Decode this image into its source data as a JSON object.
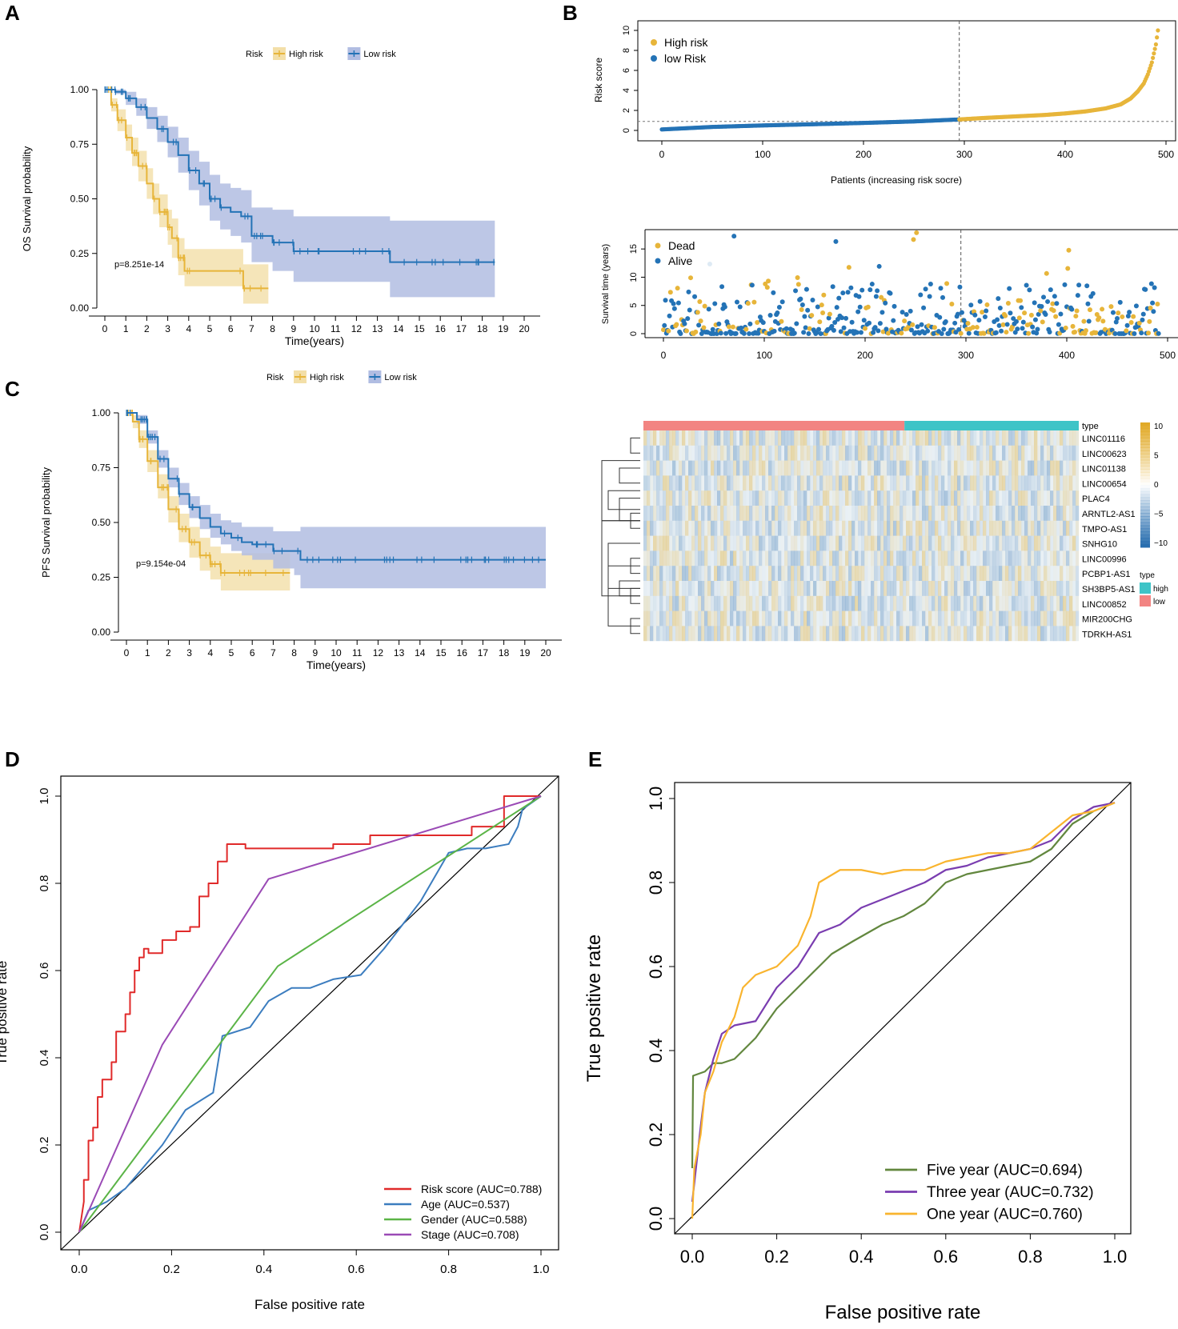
{
  "colors": {
    "high": "#E7B53A",
    "low": "#2473B6",
    "high_ci": "#F3DFA8",
    "low_ci": "#B1BDE2",
    "red": "#E02A2A",
    "blue": "#3C7DBF",
    "green": "#5BB447",
    "purple": "#9A4AB5",
    "olive": "#62873E",
    "violet": "#7A3DB0",
    "orange": "#F9B42E",
    "heat_type_low": "#F28482",
    "heat_type_high": "#3EC4C7"
  },
  "panel_labels": {
    "a": "A",
    "b": "B",
    "c": "C",
    "d": "D",
    "e": "E"
  },
  "chart_data": [
    {
      "id": "A",
      "type": "line",
      "title": "",
      "legend_title": "Risk",
      "legend": [
        "High risk",
        "Low risk"
      ],
      "xlabel": "Time(years)",
      "ylabel": "OS Survival probability",
      "xlim": [
        0,
        20
      ],
      "ylim": [
        0,
        1
      ],
      "xticks": [
        0,
        1,
        2,
        3,
        4,
        5,
        6,
        7,
        8,
        9,
        10,
        11,
        12,
        13,
        14,
        15,
        16,
        17,
        18,
        19,
        20
      ],
      "yticks": [
        "0.00",
        "0.25",
        "0.50",
        "0.75",
        "1.00"
      ],
      "annotation": "p=8.251e-14",
      "series": [
        {
          "name": "High risk",
          "x": [
            0,
            0.3,
            0.6,
            1,
            1.3,
            1.6,
            2,
            2.3,
            2.6,
            3,
            3.2,
            3.5,
            3.8,
            4,
            4.5,
            5,
            6,
            6.6,
            7,
            7.8
          ],
          "y": [
            1,
            0.93,
            0.86,
            0.78,
            0.71,
            0.65,
            0.57,
            0.5,
            0.44,
            0.37,
            0.32,
            0.23,
            0.17,
            0.17,
            0.17,
            0.17,
            0.17,
            0.09,
            0.09,
            0.09
          ],
          "lower": [
            1,
            0.9,
            0.81,
            0.72,
            0.65,
            0.58,
            0.5,
            0.43,
            0.37,
            0.29,
            0.23,
            0.15,
            0.1,
            0.1,
            0.1,
            0.1,
            0.1,
            0.02,
            0.02,
            0.02
          ],
          "upper": [
            1,
            0.96,
            0.91,
            0.84,
            0.78,
            0.72,
            0.64,
            0.57,
            0.52,
            0.45,
            0.41,
            0.32,
            0.27,
            0.27,
            0.27,
            0.27,
            0.27,
            0.2,
            0.2,
            0.2
          ]
        },
        {
          "name": "Low risk",
          "x": [
            0,
            0.5,
            1,
            1.5,
            2,
            2.5,
            3,
            3.5,
            4,
            4.5,
            5,
            5.5,
            6,
            6.5,
            7,
            7.5,
            8,
            9,
            11,
            13,
            13.6,
            15,
            18.6
          ],
          "y": [
            1,
            0.99,
            0.96,
            0.92,
            0.87,
            0.82,
            0.76,
            0.7,
            0.63,
            0.57,
            0.5,
            0.46,
            0.44,
            0.42,
            0.33,
            0.33,
            0.3,
            0.26,
            0.26,
            0.26,
            0.21,
            0.21,
            0.21
          ],
          "lower": [
            1,
            0.98,
            0.93,
            0.88,
            0.82,
            0.76,
            0.69,
            0.62,
            0.54,
            0.47,
            0.4,
            0.36,
            0.33,
            0.3,
            0.21,
            0.21,
            0.17,
            0.12,
            0.12,
            0.12,
            0.05,
            0.05,
            0.05
          ],
          "upper": [
            1,
            1,
            0.99,
            0.96,
            0.92,
            0.88,
            0.83,
            0.78,
            0.72,
            0.67,
            0.61,
            0.57,
            0.55,
            0.54,
            0.46,
            0.46,
            0.45,
            0.42,
            0.42,
            0.42,
            0.4,
            0.4,
            0.4
          ]
        }
      ]
    },
    {
      "id": "B1",
      "type": "scatter",
      "legend": [
        "High risk",
        "low Risk"
      ],
      "xlabel": "Patients (increasing risk socre)",
      "ylabel": "Risk score",
      "xlim": [
        0,
        500
      ],
      "ylim": [
        0,
        10
      ],
      "xticks": [
        0,
        100,
        200,
        300,
        400,
        500
      ],
      "yticks": [
        0,
        2,
        4,
        6,
        8,
        10
      ],
      "cutoff_patient": 295,
      "cutoff_score": 0.9,
      "n_patients": 492,
      "curve": {
        "rank": [
          0,
          50,
          100,
          150,
          200,
          250,
          295,
          320,
          350,
          380,
          400,
          420,
          440,
          455,
          465,
          472,
          478,
          482,
          486,
          490,
          492
        ],
        "score": [
          0.1,
          0.35,
          0.5,
          0.62,
          0.75,
          0.9,
          1.1,
          1.25,
          1.4,
          1.55,
          1.7,
          1.9,
          2.2,
          2.6,
          3.2,
          3.9,
          4.7,
          5.6,
          6.8,
          8.6,
          10.0
        ]
      }
    },
    {
      "id": "B2",
      "type": "scatter",
      "legend": [
        "Dead",
        "Alive"
      ],
      "ylabel": "Survival time (years)",
      "xlim": [
        0,
        500
      ],
      "ylim": [
        0,
        18
      ],
      "xticks": [
        0,
        100,
        200,
        300,
        400,
        500
      ],
      "yticks": [
        0,
        5,
        10,
        15
      ],
      "cutoff_patient": 295
    },
    {
      "id": "B3",
      "type": "heatmap",
      "legend_type_title": "type",
      "legend_type": [
        "high",
        "low"
      ],
      "row_type_label": "type",
      "scale_ticks": [
        "10",
        "5",
        "0",
        "−5",
        "−10"
      ],
      "rows": [
        "LINC01116",
        "LINC00623",
        "LINC01138",
        "LINC00654",
        "PLAC4",
        "ARNTL2-AS1",
        "TMPO-AS1",
        "SNHG10",
        "LINC00996",
        "PCBP1-AS1",
        "SH3BP5-AS1",
        "LINC00852",
        "MIR200CHG",
        "TDRKH-AS1"
      ]
    },
    {
      "id": "C",
      "type": "line",
      "legend_title": "Risk",
      "legend": [
        "High risk",
        "Low risk"
      ],
      "xlabel": "Time(years)",
      "ylabel": "PFS Survival probability",
      "xlim": [
        0,
        20
      ],
      "ylim": [
        0,
        1
      ],
      "xticks": [
        0,
        1,
        2,
        3,
        4,
        5,
        6,
        7,
        8,
        9,
        10,
        11,
        12,
        13,
        14,
        15,
        16,
        17,
        18,
        19,
        20
      ],
      "yticks": [
        "0.00",
        "0.25",
        "0.50",
        "0.75",
        "1.00"
      ],
      "annotation": "p=9.154e-04",
      "series": [
        {
          "name": "High risk",
          "x": [
            0,
            0.3,
            0.6,
            1,
            1.5,
            2,
            2.5,
            3,
            3.5,
            4,
            4.5,
            5,
            6,
            7,
            7.8
          ],
          "y": [
            1,
            0.96,
            0.88,
            0.78,
            0.66,
            0.56,
            0.47,
            0.41,
            0.35,
            0.31,
            0.27,
            0.27,
            0.27,
            0.27,
            0.27
          ],
          "lower": [
            1,
            0.93,
            0.84,
            0.73,
            0.61,
            0.5,
            0.41,
            0.34,
            0.28,
            0.24,
            0.19,
            0.19,
            0.19,
            0.19,
            0.19
          ],
          "upper": [
            1,
            0.99,
            0.92,
            0.83,
            0.72,
            0.62,
            0.54,
            0.48,
            0.43,
            0.39,
            0.36,
            0.36,
            0.36,
            0.36,
            0.36
          ]
        },
        {
          "name": "Low risk",
          "x": [
            0,
            0.5,
            1,
            1.5,
            2,
            2.5,
            3,
            3.5,
            4,
            4.5,
            5,
            5.5,
            6,
            7,
            8,
            8.3,
            10,
            15,
            20
          ],
          "y": [
            1,
            0.97,
            0.89,
            0.79,
            0.7,
            0.63,
            0.57,
            0.52,
            0.48,
            0.45,
            0.43,
            0.41,
            0.4,
            0.37,
            0.37,
            0.33,
            0.33,
            0.33,
            0.33
          ],
          "lower": [
            1,
            0.95,
            0.86,
            0.75,
            0.66,
            0.58,
            0.52,
            0.47,
            0.43,
            0.4,
            0.37,
            0.35,
            0.33,
            0.29,
            0.26,
            0.2,
            0.2,
            0.2,
            0.2
          ],
          "upper": [
            1,
            0.99,
            0.92,
            0.83,
            0.75,
            0.68,
            0.62,
            0.58,
            0.54,
            0.51,
            0.5,
            0.48,
            0.48,
            0.46,
            0.46,
            0.48,
            0.48,
            0.48,
            0.48
          ]
        }
      ]
    },
    {
      "id": "D",
      "type": "line",
      "xlabel": "False positive rate",
      "ylabel": "True positive rate",
      "xlim": [
        0,
        1
      ],
      "ylim": [
        0,
        1
      ],
      "xticks": [
        "0.0",
        "0.2",
        "0.4",
        "0.6",
        "0.8",
        "1.0"
      ],
      "yticks": [
        "0.0",
        "0.2",
        "0.4",
        "0.6",
        "0.8",
        "1.0"
      ],
      "series": [
        {
          "name": "Risk score (AUC=0.788)",
          "color_key": "red",
          "x": [
            0,
            0.01,
            0.01,
            0.02,
            0.02,
            0.03,
            0.03,
            0.04,
            0.04,
            0.05,
            0.05,
            0.07,
            0.07,
            0.08,
            0.08,
            0.1,
            0.1,
            0.11,
            0.11,
            0.12,
            0.12,
            0.13,
            0.13,
            0.14,
            0.14,
            0.15,
            0.15,
            0.18,
            0.18,
            0.21,
            0.21,
            0.24,
            0.24,
            0.26,
            0.26,
            0.28,
            0.28,
            0.3,
            0.3,
            0.32,
            0.32,
            0.36,
            0.36,
            0.55,
            0.55,
            0.63,
            0.63,
            0.85,
            0.85,
            0.92,
            0.92,
            1
          ],
          "y": [
            0,
            0.07,
            0.12,
            0.12,
            0.21,
            0.21,
            0.24,
            0.24,
            0.31,
            0.31,
            0.35,
            0.35,
            0.39,
            0.39,
            0.46,
            0.46,
            0.5,
            0.5,
            0.55,
            0.55,
            0.6,
            0.6,
            0.63,
            0.63,
            0.65,
            0.65,
            0.64,
            0.64,
            0.67,
            0.67,
            0.69,
            0.69,
            0.7,
            0.7,
            0.77,
            0.77,
            0.8,
            0.8,
            0.85,
            0.85,
            0.89,
            0.89,
            0.88,
            0.88,
            0.89,
            0.89,
            0.91,
            0.91,
            0.93,
            0.93,
            1,
            1
          ]
        },
        {
          "name": "Age (AUC=0.537)",
          "color_key": "blue",
          "x": [
            0,
            0.02,
            0.04,
            0.06,
            0.1,
            0.18,
            0.23,
            0.29,
            0.31,
            0.37,
            0.41,
            0.46,
            0.5,
            0.55,
            0.61,
            0.66,
            0.74,
            0.8,
            0.84,
            0.88,
            0.93,
            0.95,
            0.96,
            1
          ],
          "y": [
            0,
            0.05,
            0.06,
            0.07,
            0.1,
            0.2,
            0.28,
            0.32,
            0.45,
            0.47,
            0.53,
            0.56,
            0.56,
            0.58,
            0.59,
            0.65,
            0.76,
            0.87,
            0.88,
            0.88,
            0.89,
            0.93,
            0.97,
            1
          ]
        },
        {
          "name": "Gender (AUC=0.588)",
          "color_key": "green",
          "x": [
            0,
            0.43,
            1
          ],
          "y": [
            0,
            0.61,
            1
          ]
        },
        {
          "name": "Stage (AUC=0.708)",
          "color_key": "purple",
          "x": [
            0,
            0.18,
            0.41,
            1
          ],
          "y": [
            0,
            0.43,
            0.81,
            1
          ]
        }
      ]
    },
    {
      "id": "E",
      "type": "line",
      "xlabel": "False positive rate",
      "ylabel": "True positive rate",
      "xlim": [
        0,
        1
      ],
      "ylim": [
        0,
        1
      ],
      "xticks": [
        "0.0",
        "0.2",
        "0.4",
        "0.6",
        "0.8",
        "1.0"
      ],
      "yticks": [
        "0.0",
        "0.2",
        "0.4",
        "0.6",
        "0.8",
        "1.0"
      ],
      "series": [
        {
          "name": "Five year (AUC=0.694)",
          "color_key": "olive",
          "x": [
            0,
            0.002,
            0.03,
            0.04,
            0.05,
            0.07,
            0.1,
            0.15,
            0.2,
            0.25,
            0.3,
            0.33,
            0.38,
            0.45,
            0.5,
            0.55,
            0.6,
            0.65,
            0.7,
            0.75,
            0.8,
            0.85,
            0.9,
            0.95,
            1
          ],
          "y": [
            0.12,
            0.34,
            0.35,
            0.36,
            0.37,
            0.37,
            0.38,
            0.43,
            0.5,
            0.55,
            0.6,
            0.63,
            0.66,
            0.7,
            0.72,
            0.75,
            0.8,
            0.82,
            0.83,
            0.84,
            0.85,
            0.88,
            0.94,
            0.97,
            0.99
          ]
        },
        {
          "name": "Three year (AUC=0.732)",
          "color_key": "violet",
          "x": [
            0,
            0.01,
            0.02,
            0.03,
            0.05,
            0.07,
            0.1,
            0.15,
            0.2,
            0.25,
            0.3,
            0.35,
            0.4,
            0.45,
            0.5,
            0.55,
            0.6,
            0.65,
            0.7,
            0.75,
            0.8,
            0.85,
            0.9,
            0.95,
            1
          ],
          "y": [
            0.04,
            0.13,
            0.22,
            0.3,
            0.38,
            0.44,
            0.46,
            0.47,
            0.55,
            0.6,
            0.68,
            0.7,
            0.74,
            0.76,
            0.78,
            0.8,
            0.83,
            0.84,
            0.86,
            0.87,
            0.88,
            0.9,
            0.95,
            0.98,
            0.99
          ]
        },
        {
          "name": "One year (AUC=0.760)",
          "color_key": "orange",
          "x": [
            0,
            0.005,
            0.02,
            0.03,
            0.05,
            0.07,
            0.1,
            0.12,
            0.15,
            0.2,
            0.25,
            0.28,
            0.3,
            0.35,
            0.4,
            0.45,
            0.5,
            0.55,
            0.6,
            0.65,
            0.7,
            0.75,
            0.8,
            0.85,
            0.9,
            0.95,
            1
          ],
          "y": [
            0,
            0.12,
            0.2,
            0.3,
            0.35,
            0.42,
            0.48,
            0.55,
            0.58,
            0.6,
            0.65,
            0.72,
            0.8,
            0.83,
            0.83,
            0.82,
            0.83,
            0.83,
            0.85,
            0.86,
            0.87,
            0.87,
            0.88,
            0.92,
            0.96,
            0.97,
            0.99
          ]
        }
      ]
    }
  ]
}
